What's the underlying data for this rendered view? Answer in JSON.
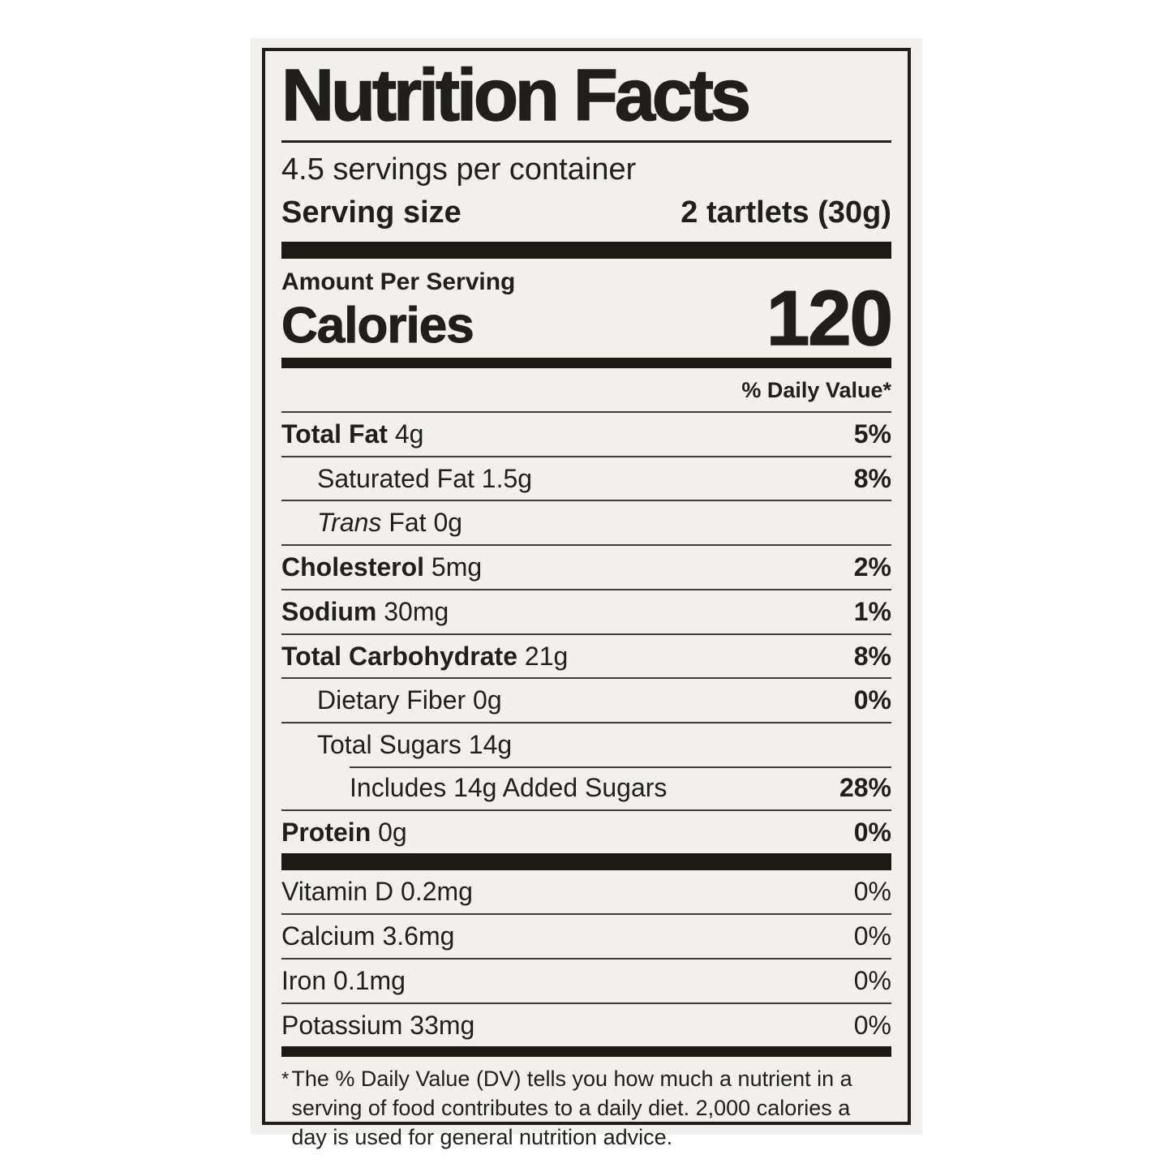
{
  "colors": {
    "page-bg": "#ffffff",
    "label-bg": "#f1f0ec",
    "ink": "#211f1c",
    "bar": "#1c1a13",
    "rule": "#3f3d39"
  },
  "label": {
    "title": "Nutrition Facts",
    "servings_per_container": "4.5 servings per container",
    "serving_size": {
      "label": "Serving size",
      "value": "2 tartlets (30g)"
    },
    "amount_per_serving": "Amount Per Serving",
    "calories": {
      "label": "Calories",
      "value": "120"
    },
    "daily_value_header": "% Daily Value*",
    "nutrients": [
      {
        "name": "Total Fat",
        "amount": "4g",
        "dv": "5%"
      },
      {
        "name": "Saturated Fat",
        "amount": "1.5g",
        "dv": "8%"
      },
      {
        "name_italic": "Trans",
        "name": "Fat",
        "amount": "0g",
        "dv": ""
      },
      {
        "name": "Cholesterol",
        "amount": "5mg",
        "dv": "2%"
      },
      {
        "name": "Sodium",
        "amount": "30mg",
        "dv": "1%"
      },
      {
        "name": "Total Carbohydrate",
        "amount": "21g",
        "dv": "8%"
      },
      {
        "name": "Dietary Fiber",
        "amount": "0g",
        "dv": "0%"
      },
      {
        "name": "Total Sugars",
        "amount": "14g",
        "dv": ""
      },
      {
        "name": "Includes 14g Added Sugars",
        "amount": "",
        "dv": "28%"
      },
      {
        "name": "Protein",
        "amount": "0g",
        "dv": "0%"
      }
    ],
    "vitamins": [
      {
        "name": "Vitamin D",
        "amount": "0.2mg",
        "dv": "0%"
      },
      {
        "name": "Calcium",
        "amount": "3.6mg",
        "dv": "0%"
      },
      {
        "name": "Iron",
        "amount": "0.1mg",
        "dv": "0%"
      },
      {
        "name": "Potassium",
        "amount": "33mg",
        "dv": "0%"
      }
    ],
    "footnote": {
      "mark": "*",
      "text": "The % Daily Value (DV) tells you how much a nutrient in a serving of food contributes to a daily diet. 2,000 calories a day is used for general nutrition advice."
    }
  }
}
